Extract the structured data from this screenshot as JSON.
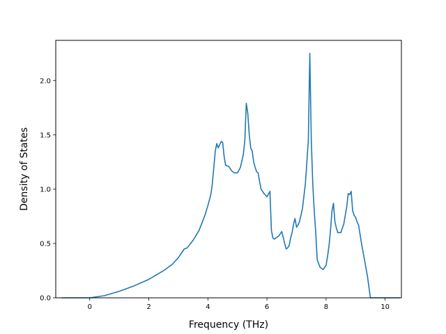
{
  "chart_data": {
    "type": "line",
    "title": "",
    "xlabel": "Frequency (THz)",
    "ylabel": "Density of States",
    "xlim": [
      -1.15,
      10.55
    ],
    "ylim": [
      0.0,
      2.37
    ],
    "xticks": [
      0,
      2,
      4,
      6,
      8,
      10
    ],
    "xtick_labels": [
      "0",
      "2",
      "4",
      "6",
      "8",
      "10"
    ],
    "yticks": [
      0.0,
      0.5,
      1.0,
      1.5,
      2.0
    ],
    "ytick_labels": [
      "0.0",
      "0.5",
      "1.0",
      "1.5",
      "2.0"
    ],
    "grid": false,
    "series": [
      {
        "color": "#1f77b4",
        "x": [
          -0.95,
          -0.5,
          0.0,
          0.5,
          1.0,
          1.5,
          2.0,
          2.5,
          2.8,
          3.0,
          3.1,
          3.2,
          3.3,
          3.5,
          3.7,
          3.8,
          3.9,
          4.0,
          4.1,
          4.15,
          4.2,
          4.25,
          4.3,
          4.35,
          4.45,
          4.5,
          4.55,
          4.6,
          4.7,
          4.8,
          4.9,
          5.0,
          5.1,
          5.2,
          5.25,
          5.3,
          5.35,
          5.4,
          5.45,
          5.5,
          5.55,
          5.6,
          5.65,
          5.7,
          5.75,
          5.8,
          5.9,
          6.0,
          6.1,
          6.15,
          6.2,
          6.25,
          6.3,
          6.35,
          6.4,
          6.5,
          6.6,
          6.65,
          6.7,
          6.75,
          6.8,
          6.85,
          6.9,
          6.95,
          7.0,
          7.05,
          7.1,
          7.2,
          7.3,
          7.4,
          7.45,
          7.5,
          7.55,
          7.6,
          7.65,
          7.7,
          7.8,
          7.9,
          8.0,
          8.05,
          8.1,
          8.15,
          8.2,
          8.25,
          8.3,
          8.35,
          8.4,
          8.5,
          8.6,
          8.7,
          8.75,
          8.8,
          8.85,
          8.9,
          8.95,
          9.0,
          9.05,
          9.1,
          9.2,
          9.3,
          9.4,
          9.5,
          9.6,
          9.65,
          10.0,
          10.5
        ],
        "y": [
          0.0,
          0.0,
          0.0,
          0.02,
          0.06,
          0.11,
          0.17,
          0.25,
          0.31,
          0.37,
          0.41,
          0.45,
          0.46,
          0.53,
          0.62,
          0.69,
          0.76,
          0.85,
          0.95,
          1.05,
          1.2,
          1.35,
          1.42,
          1.38,
          1.44,
          1.43,
          1.3,
          1.22,
          1.21,
          1.17,
          1.15,
          1.15,
          1.2,
          1.32,
          1.45,
          1.79,
          1.7,
          1.5,
          1.38,
          1.35,
          1.25,
          1.2,
          1.16,
          1.15,
          1.07,
          1.0,
          0.96,
          0.93,
          0.98,
          0.62,
          0.55,
          0.54,
          0.55,
          0.56,
          0.57,
          0.61,
          0.5,
          0.45,
          0.46,
          0.48,
          0.55,
          0.6,
          0.68,
          0.73,
          0.65,
          0.67,
          0.7,
          0.82,
          1.05,
          1.45,
          2.25,
          1.45,
          1.05,
          0.8,
          0.6,
          0.35,
          0.28,
          0.26,
          0.3,
          0.38,
          0.48,
          0.62,
          0.8,
          0.87,
          0.7,
          0.64,
          0.6,
          0.6,
          0.68,
          0.84,
          0.96,
          0.95,
          0.98,
          0.8,
          0.76,
          0.74,
          0.7,
          0.67,
          0.5,
          0.35,
          0.2,
          0.0,
          0.0,
          0.0,
          0.0,
          0.0
        ]
      }
    ]
  }
}
